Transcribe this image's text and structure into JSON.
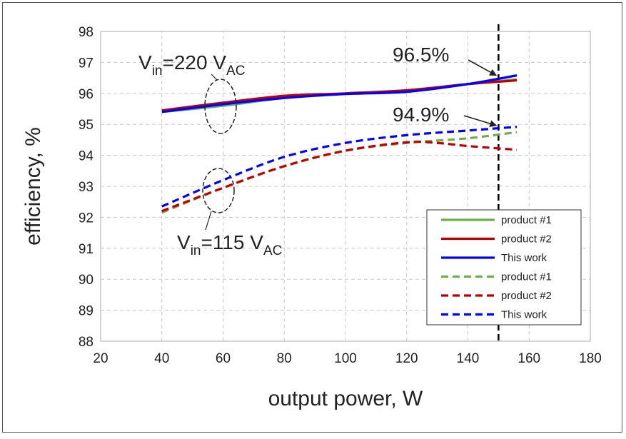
{
  "chart_data": {
    "type": "line",
    "xlabel": "output power, W",
    "ylabel": "efficiency, %",
    "xlim": [
      20,
      180
    ],
    "ylim": [
      88,
      98
    ],
    "x_ticks": [
      "20",
      "40",
      "60",
      "80",
      "100",
      "120",
      "140",
      "160",
      "180"
    ],
    "y_ticks": [
      "88",
      "89",
      "90",
      "91",
      "92",
      "93",
      "94",
      "95",
      "96",
      "97",
      "98"
    ],
    "grid": true,
    "legend_placement": "bottom-right",
    "reference_line_x": 150,
    "series": [
      {
        "name": "product #1",
        "style": "solid",
        "color": "#70ad47",
        "x": [
          40,
          60,
          80,
          100,
          120,
          140,
          156
        ],
        "y": [
          95.4,
          95.6,
          95.85,
          96.0,
          96.1,
          96.3,
          96.45
        ]
      },
      {
        "name": "product #2",
        "style": "solid",
        "color": "#c00000",
        "x": [
          40,
          60,
          80,
          100,
          120,
          140,
          156
        ],
        "y": [
          95.45,
          95.7,
          95.92,
          96.0,
          96.1,
          96.3,
          96.42
        ]
      },
      {
        "name": "This work",
        "style": "solid",
        "color": "#0000ff",
        "x": [
          40,
          60,
          80,
          100,
          120,
          140,
          156
        ],
        "y": [
          95.4,
          95.65,
          95.85,
          95.98,
          96.05,
          96.3,
          96.58
        ]
      },
      {
        "name": "product #1",
        "style": "dashed",
        "color": "#70ad47",
        "x": [
          40,
          60,
          80,
          100,
          120,
          140,
          156
        ],
        "y": [
          92.15,
          92.95,
          93.65,
          94.15,
          94.4,
          94.55,
          94.75
        ]
      },
      {
        "name": "product #2",
        "style": "dashed",
        "color": "#c00000",
        "x": [
          40,
          60,
          80,
          100,
          120,
          130,
          140,
          156
        ],
        "y": [
          92.2,
          92.95,
          93.65,
          94.15,
          94.42,
          94.4,
          94.3,
          94.18
        ]
      },
      {
        "name": "This work",
        "style": "dashed",
        "color": "#0000ff",
        "x": [
          40,
          60,
          80,
          100,
          120,
          140,
          156
        ],
        "y": [
          92.35,
          93.2,
          93.95,
          94.4,
          94.65,
          94.8,
          94.92
        ]
      }
    ],
    "annotations": {
      "vin220": {
        "pre": "V",
        "sub1": "in",
        "mid": "=220 V",
        "sub2": "AC"
      },
      "vin115": {
        "pre": "V",
        "sub1": "in",
        "mid": "=115 V",
        "sub2": "AC"
      },
      "peak220": {
        "label": "96.5%",
        "x": 150,
        "y": 96.5
      },
      "peak115": {
        "label": "94.9%",
        "x": 150,
        "y": 94.9
      }
    }
  }
}
